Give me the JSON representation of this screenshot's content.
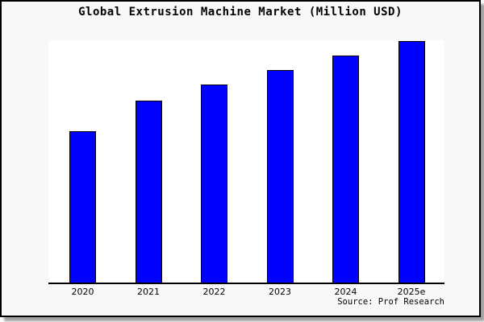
{
  "title": "Global Extrusion Machine Market (Million USD)",
  "source_credit": "Source: Prof Research",
  "colors": {
    "page_background": "#f8f8f8",
    "plot_background": "#ffffff",
    "bar_fill": "#0000ff",
    "bar_border": "#000000",
    "axis": "#000000",
    "frame_border": "#000000",
    "text": "#000000"
  },
  "chart_data": {
    "type": "bar",
    "title": "Global Extrusion Machine Market (Million USD)",
    "categories": [
      "2020",
      "2021",
      "2022",
      "2023",
      "2024",
      "2025e"
    ],
    "values": [
      62.7,
      75.3,
      82.0,
      88.0,
      94.0,
      100.0
    ],
    "values_note": "relative units, percent of tallest (2025e) bar; y-axis has no ticks or labels in the image",
    "xlabel": "",
    "ylabel": "",
    "ylim": [
      0,
      100
    ],
    "grid": false,
    "legend": false,
    "y_axis_hidden": true,
    "annotations": [
      "Source: Prof Research"
    ]
  }
}
